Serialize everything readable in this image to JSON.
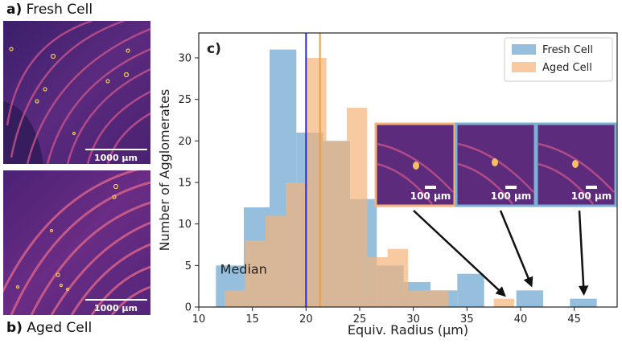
{
  "panel_a": {
    "letter": "a)",
    "title": "Fresh Cell",
    "scalebar": "1000 µm"
  },
  "panel_b": {
    "letter": "b)",
    "title": "Aged Cell",
    "scalebar": "1000 µm"
  },
  "chart_data": {
    "type": "bar",
    "panel_letter": "c)",
    "xlabel": "Equiv. Radius (µm)",
    "ylabel": "Number of Agglomerates",
    "xlim": [
      10,
      49
    ],
    "ylim": [
      0,
      33
    ],
    "xticks": [
      10,
      15,
      20,
      25,
      30,
      35,
      40,
      45
    ],
    "yticks": [
      0,
      5,
      10,
      15,
      20,
      25,
      30
    ],
    "series": [
      {
        "name": "Fresh Cell",
        "color": "#7bafd4",
        "bins": [
          {
            "x0": 11.6,
            "x1": 14.2,
            "y": 5
          },
          {
            "x0": 14.2,
            "x1": 16.6,
            "y": 12
          },
          {
            "x0": 16.6,
            "x1": 19.1,
            "y": 31
          },
          {
            "x0": 19.1,
            "x1": 21.6,
            "y": 21
          },
          {
            "x0": 21.6,
            "x1": 24.1,
            "y": 20
          },
          {
            "x0": 24.1,
            "x1": 26.6,
            "y": 13
          },
          {
            "x0": 26.6,
            "x1": 29.1,
            "y": 5
          },
          {
            "x0": 29.1,
            "x1": 31.6,
            "y": 3
          },
          {
            "x0": 31.6,
            "x1": 34.1,
            "y": 2
          },
          {
            "x0": 34.1,
            "x1": 36.6,
            "y": 4
          },
          {
            "x0": 39.6,
            "x1": 42.1,
            "y": 2
          },
          {
            "x0": 44.6,
            "x1": 47.1,
            "y": 1
          }
        ]
      },
      {
        "name": "Aged Cell",
        "color": "#f5b37a",
        "bins": [
          {
            "x0": 12.4,
            "x1": 14.3,
            "y": 2
          },
          {
            "x0": 14.3,
            "x1": 16.2,
            "y": 8
          },
          {
            "x0": 16.2,
            "x1": 18.1,
            "y": 11
          },
          {
            "x0": 18.1,
            "x1": 20.0,
            "y": 15
          },
          {
            "x0": 20.0,
            "x1": 21.9,
            "y": 30
          },
          {
            "x0": 21.9,
            "x1": 23.8,
            "y": 20
          },
          {
            "x0": 23.8,
            "x1": 25.7,
            "y": 24
          },
          {
            "x0": 25.7,
            "x1": 27.6,
            "y": 6
          },
          {
            "x0": 27.6,
            "x1": 29.5,
            "y": 7
          },
          {
            "x0": 29.5,
            "x1": 31.4,
            "y": 2
          },
          {
            "x0": 31.4,
            "x1": 33.3,
            "y": 2
          },
          {
            "x0": 37.5,
            "x1": 39.4,
            "y": 1
          }
        ]
      }
    ],
    "median_lines": [
      {
        "series": "Fresh Cell",
        "x": 20.0,
        "color": "#2a2ad0"
      },
      {
        "series": "Aged Cell",
        "x": 21.3,
        "color": "#f0a030"
      }
    ],
    "annotation": {
      "text": "Median",
      "x": 12.0,
      "y": 4.0
    },
    "insets": [
      {
        "scalebar": "100 µm",
        "border_color": "#f5b37a",
        "arrow_to": [
          38.5,
          1.4
        ]
      },
      {
        "scalebar": "100 µm",
        "border_color": "#7bafd4",
        "arrow_to": [
          41.0,
          2.6
        ]
      },
      {
        "scalebar": "100 µm",
        "border_color": "#7bafd4",
        "arrow_to": [
          45.9,
          1.6
        ]
      }
    ],
    "legend": {
      "position": "top-right"
    }
  }
}
